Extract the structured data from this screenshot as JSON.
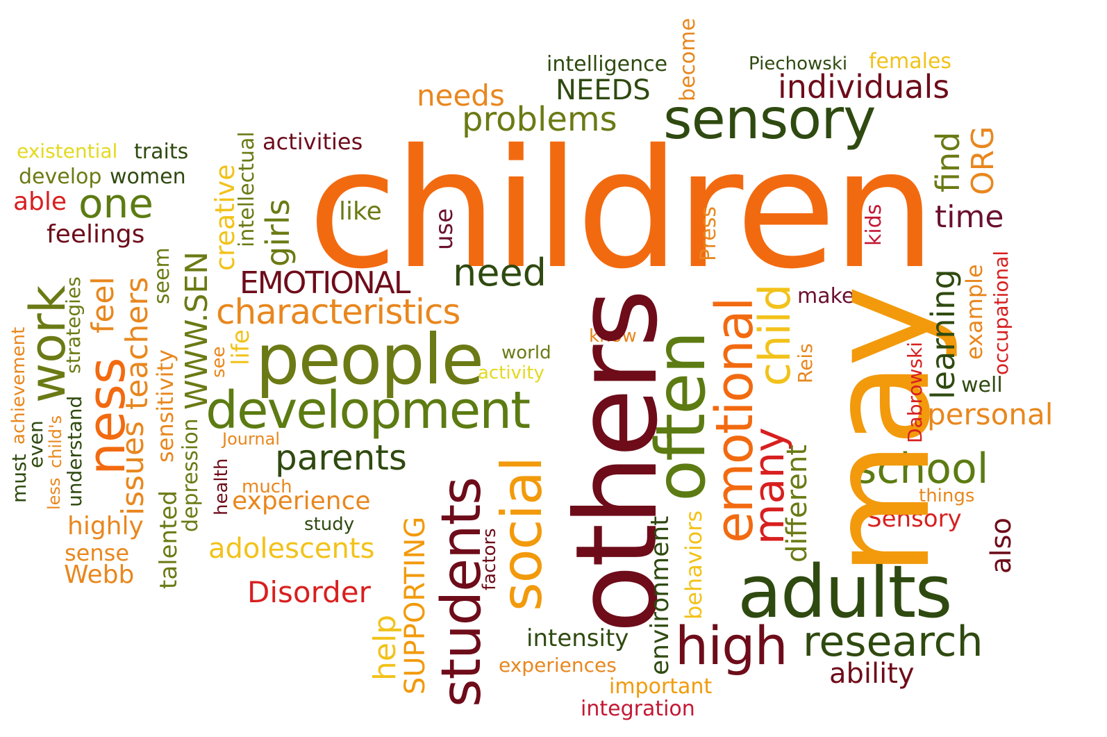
{
  "colors": {
    "orange": "#f26a10",
    "dark_orange": "#e8871e",
    "amber": "#f29a0c",
    "yellow": "#f2c21a",
    "light_yellow": "#e3d91f",
    "red": "#d81f1f",
    "crimson": "#c21834",
    "dark_red": "#6e0c1a",
    "maroon": "#6a1030",
    "olive": "#6b7a14",
    "green": "#5c7b12",
    "dark_green": "#2f4a10",
    "darkest_green": "#27350e",
    "brown": "#7a2d10"
  },
  "words": [
    {
      "text": "children",
      "color": "orange"
    },
    {
      "text": "may",
      "color": "amber"
    },
    {
      "text": "others",
      "color": "dark_red"
    },
    {
      "text": "often",
      "color": "green"
    },
    {
      "text": "people",
      "color": "olive"
    },
    {
      "text": "development",
      "color": "green"
    },
    {
      "text": "sensory",
      "color": "dark_green"
    },
    {
      "text": "adults",
      "color": "dark_green"
    },
    {
      "text": "emotional",
      "color": "orange"
    },
    {
      "text": "students",
      "color": "dark_red"
    },
    {
      "text": "social",
      "color": "amber"
    },
    {
      "text": "high",
      "color": "dark_red"
    },
    {
      "text": "research",
      "color": "dark_green"
    },
    {
      "text": "characteristics",
      "color": "dark_orange"
    },
    {
      "text": "ness",
      "color": "orange"
    },
    {
      "text": "work",
      "color": "olive"
    },
    {
      "text": "school",
      "color": "green"
    },
    {
      "text": "parents",
      "color": "dark_green"
    },
    {
      "text": "child",
      "color": "yellow"
    },
    {
      "text": "many",
      "color": "red"
    },
    {
      "text": "one",
      "color": "green"
    },
    {
      "text": "need",
      "color": "dark_green"
    },
    {
      "text": "personal",
      "color": "dark_orange"
    },
    {
      "text": "individuals",
      "color": "dark_red"
    },
    {
      "text": "problems",
      "color": "olive"
    },
    {
      "text": "needs",
      "color": "dark_orange"
    },
    {
      "text": "NEEDS",
      "color": "dark_green"
    },
    {
      "text": "time",
      "color": "maroon"
    },
    {
      "text": "learning",
      "color": "dark_green"
    },
    {
      "text": "find",
      "color": "olive"
    },
    {
      "text": "ORG",
      "color": "dark_orange"
    },
    {
      "text": "EMOTIONAL",
      "color": "dark_red"
    },
    {
      "text": "girls",
      "color": "olive"
    },
    {
      "text": "experience",
      "color": "dark_orange"
    },
    {
      "text": "adolescents",
      "color": "yellow"
    },
    {
      "text": "Disorder",
      "color": "red"
    },
    {
      "text": "SUPPORTING",
      "color": "amber"
    },
    {
      "text": "help",
      "color": "yellow"
    },
    {
      "text": "different",
      "color": "olive"
    },
    {
      "text": "also",
      "color": "dark_red"
    },
    {
      "text": "ability",
      "color": "dark_red"
    },
    {
      "text": "intensity",
      "color": "dark_green"
    },
    {
      "text": "environment",
      "color": "dark_green"
    },
    {
      "text": "behaviors",
      "color": "yellow"
    },
    {
      "text": "Sensory",
      "color": "red"
    },
    {
      "text": "issues",
      "color": "dark_orange"
    },
    {
      "text": "teachers",
      "color": "dark_orange"
    },
    {
      "text": "feel",
      "color": "dark_orange"
    },
    {
      "text": "WWW.SEN",
      "color": "olive"
    },
    {
      "text": "creative",
      "color": "yellow"
    },
    {
      "text": "intellectual",
      "color": "olive"
    },
    {
      "text": "highly",
      "color": "dark_orange"
    },
    {
      "text": "sense",
      "color": "dark_orange"
    },
    {
      "text": "Webb",
      "color": "dark_orange"
    },
    {
      "text": "feelings",
      "color": "dark_red"
    },
    {
      "text": "able",
      "color": "red"
    },
    {
      "text": "develop",
      "color": "olive"
    },
    {
      "text": "women",
      "color": "dark_green"
    },
    {
      "text": "existential",
      "color": "light_yellow"
    },
    {
      "text": "traits",
      "color": "dark_green"
    },
    {
      "text": "activities",
      "color": "dark_red"
    },
    {
      "text": "like",
      "color": "olive"
    },
    {
      "text": "use",
      "color": "maroon"
    },
    {
      "text": "Press",
      "color": "dark_orange"
    },
    {
      "text": "kids",
      "color": "crimson"
    },
    {
      "text": "make",
      "color": "maroon"
    },
    {
      "text": "example",
      "color": "dark_orange"
    },
    {
      "text": "occupational",
      "color": "red"
    },
    {
      "text": "well",
      "color": "dark_green"
    },
    {
      "text": "Dabrowski",
      "color": "red"
    },
    {
      "text": "Reis",
      "color": "dark_orange"
    },
    {
      "text": "things",
      "color": "dark_orange"
    },
    {
      "text": "intelligence",
      "color": "dark_green"
    },
    {
      "text": "Piechowski",
      "color": "dark_green"
    },
    {
      "text": "females",
      "color": "yellow"
    },
    {
      "text": "become",
      "color": "dark_orange"
    },
    {
      "text": "know",
      "color": "dark_orange"
    },
    {
      "text": "world",
      "color": "olive"
    },
    {
      "text": "activity",
      "color": "light_yellow"
    },
    {
      "text": "life",
      "color": "yellow"
    },
    {
      "text": "see",
      "color": "dark_orange"
    },
    {
      "text": "Journal",
      "color": "dark_orange"
    },
    {
      "text": "much",
      "color": "dark_orange"
    },
    {
      "text": "health",
      "color": "dark_red"
    },
    {
      "text": "study",
      "color": "dark_green"
    },
    {
      "text": "factors",
      "color": "dark_red"
    },
    {
      "text": "experiences",
      "color": "dark_orange"
    },
    {
      "text": "important",
      "color": "amber"
    },
    {
      "text": "integration",
      "color": "crimson"
    },
    {
      "text": "sensitivity",
      "color": "dark_orange"
    },
    {
      "text": "seem",
      "color": "olive"
    },
    {
      "text": "talented",
      "color": "olive"
    },
    {
      "text": "depression",
      "color": "olive"
    },
    {
      "text": "strategies",
      "color": "olive"
    },
    {
      "text": "understand",
      "color": "dark_green"
    },
    {
      "text": "child's",
      "color": "dark_orange"
    },
    {
      "text": "achievement",
      "color": "dark_orange"
    },
    {
      "text": "less",
      "color": "dark_orange"
    },
    {
      "text": "even",
      "color": "dark_green"
    },
    {
      "text": "must",
      "color": "dark_green"
    }
  ]
}
